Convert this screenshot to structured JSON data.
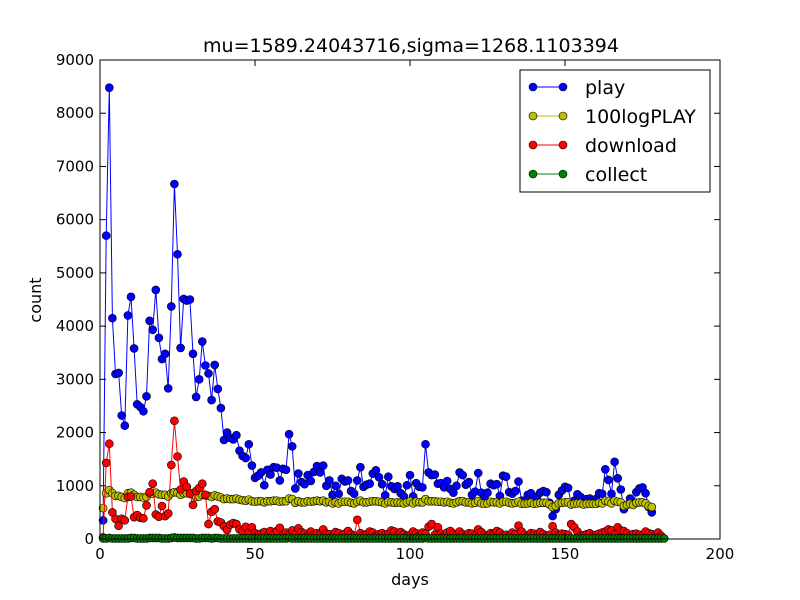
{
  "chart_data": {
    "type": "line",
    "title": "mu=1589.24043716,sigma=1268.1103394",
    "xlabel": "days",
    "ylabel": "count",
    "xlim": [
      0,
      200
    ],
    "ylim": [
      0,
      9000
    ],
    "xticks": [
      "0",
      "50",
      "100",
      "150",
      "200"
    ],
    "yticks": [
      "0",
      "1000",
      "2000",
      "3000",
      "4000",
      "5000",
      "6000",
      "7000",
      "8000",
      "9000"
    ],
    "grid": false,
    "legend_position": "top-right",
    "series": [
      {
        "name": "play",
        "color": "#0000ff",
        "x_start": 1,
        "values": [
          350,
          5700,
          8480,
          4150,
          3100,
          3120,
          2320,
          2130,
          4200,
          4550,
          3580,
          2530,
          2480,
          2400,
          2680,
          4100,
          3930,
          4680,
          3780,
          3380,
          3480,
          2830,
          4370,
          6670,
          5350,
          3590,
          4510,
          4480,
          4500,
          3480,
          2670,
          3000,
          3710,
          3260,
          3110,
          2610,
          3270,
          2820,
          2460,
          1860,
          2000,
          1900,
          1870,
          1950,
          1660,
          1560,
          1520,
          1780,
          1380,
          1150,
          1190,
          1250,
          1010,
          1300,
          1210,
          1350,
          1340,
          1100,
          1320,
          1300,
          1970,
          1740,
          950,
          1230,
          1070,
          1030,
          1200,
          1090,
          1260,
          1370,
          1250,
          1380,
          1000,
          1100,
          830,
          1000,
          850,
          1130,
          1080,
          1100,
          900,
          850,
          1100,
          1350,
          980,
          1020,
          1040,
          1230,
          1290,
          1160,
          1030,
          820,
          1170,
          990,
          940,
          990,
          860,
          800,
          1010,
          1200,
          800,
          1050,
          980,
          970,
          1780,
          1250,
          1200,
          1210,
          1040,
          1050,
          970,
          1090,
          940,
          870,
          1000,
          1250,
          1200,
          1020,
          1070,
          830,
          890,
          1240,
          870,
          780,
          870,
          1040,
          1010,
          1030,
          810,
          1190,
          1170,
          880,
          850,
          900,
          1080,
          720,
          720,
          830,
          860,
          720,
          800,
          870,
          900,
          880,
          680,
          430,
          560,
          830,
          910,
          980,
          960,
          650,
          720,
          840,
          790,
          700,
          750,
          760,
          720,
          750,
          860,
          850,
          1310,
          1110,
          850,
          1450,
          1140,
          930,
          560,
          640,
          760,
          650,
          880,
          950,
          970,
          860,
          600,
          500
        ]
      },
      {
        "name": "100logPLAY",
        "color": "#bfbf00",
        "x_start": 1,
        "values": [
          580,
          860,
          920,
          860,
          810,
          810,
          790,
          770,
          860,
          870,
          830,
          790,
          790,
          780,
          790,
          860,
          850,
          870,
          840,
          830,
          830,
          800,
          860,
          880,
          870,
          830,
          860,
          860,
          860,
          830,
          790,
          800,
          830,
          820,
          810,
          790,
          820,
          800,
          780,
          750,
          760,
          750,
          750,
          760,
          740,
          730,
          720,
          740,
          710,
          700,
          710,
          710,
          690,
          710,
          710,
          720,
          720,
          700,
          710,
          710,
          760,
          750,
          680,
          710,
          690,
          690,
          710,
          700,
          710,
          720,
          710,
          720,
          690,
          700,
          670,
          690,
          670,
          700,
          700,
          700,
          680,
          670,
          700,
          720,
          690,
          690,
          700,
          710,
          710,
          700,
          690,
          670,
          700,
          690,
          680,
          690,
          680,
          670,
          690,
          710,
          670,
          700,
          690,
          690,
          750,
          710,
          710,
          710,
          700,
          700,
          690,
          700,
          680,
          670,
          690,
          710,
          710,
          690,
          690,
          670,
          680,
          710,
          670,
          660,
          670,
          700,
          690,
          690,
          670,
          700,
          700,
          680,
          670,
          680,
          700,
          660,
          660,
          670,
          680,
          660,
          670,
          680,
          680,
          680,
          650,
          600,
          620,
          670,
          680,
          690,
          690,
          650,
          660,
          670,
          670,
          650,
          660,
          660,
          660,
          660,
          680,
          670,
          720,
          700,
          670,
          720,
          700,
          690,
          620,
          640,
          660,
          640,
          680,
          690,
          690,
          670,
          620,
          600
        ]
      },
      {
        "name": "download",
        "color": "#ff0000",
        "x_start": 1,
        "values": [
          30,
          1430,
          1790,
          500,
          380,
          250,
          380,
          350,
          790,
          800,
          410,
          450,
          400,
          390,
          630,
          880,
          1040,
          460,
          420,
          620,
          430,
          480,
          1390,
          2220,
          1550,
          930,
          1080,
          980,
          850,
          640,
          900,
          960,
          1040,
          830,
          280,
          510,
          560,
          330,
          310,
          240,
          170,
          270,
          300,
          280,
          180,
          150,
          230,
          120,
          220,
          110,
          80,
          100,
          130,
          60,
          150,
          90,
          150,
          210,
          70,
          120,
          80,
          160,
          90,
          200,
          130,
          100,
          60,
          140,
          80,
          110,
          90,
          180,
          100,
          90,
          60,
          130,
          110,
          70,
          100,
          150,
          90,
          60,
          360,
          110,
          70,
          90,
          140,
          120,
          60,
          90,
          110,
          80,
          100,
          160,
          140,
          70,
          130,
          90,
          60,
          80,
          140,
          110,
          60,
          120,
          100,
          230,
          280,
          80,
          220,
          100,
          60,
          120,
          150,
          100,
          80,
          140,
          90,
          60,
          110,
          100,
          70,
          180,
          130,
          80,
          60,
          110,
          90,
          150,
          120,
          70,
          80,
          60,
          120,
          90,
          250,
          140,
          80,
          60,
          110,
          100,
          70,
          130,
          90,
          60,
          80,
          240,
          120,
          70,
          100,
          90,
          80,
          280,
          220,
          140,
          60,
          70,
          90,
          110,
          60,
          80,
          100,
          120,
          140,
          180,
          160,
          80,
          220,
          160,
          150,
          110,
          60,
          90,
          100,
          80,
          70,
          140,
          110,
          90,
          70,
          120,
          60
        ]
      },
      {
        "name": "collect",
        "color": "#008000",
        "x_start": 1,
        "values": [
          10,
          10,
          20,
          10,
          10,
          10,
          10,
          10,
          10,
          20,
          20,
          10,
          10,
          10,
          10,
          20,
          20,
          20,
          20,
          10,
          10,
          10,
          20,
          30,
          20,
          20,
          20,
          20,
          20,
          20,
          10,
          10,
          20,
          20,
          20,
          10,
          20,
          20,
          10,
          10,
          10,
          10,
          10,
          10,
          10,
          10,
          10,
          10,
          10,
          10,
          10,
          10,
          10,
          10,
          10,
          10,
          10,
          10,
          10,
          10,
          20,
          10,
          10,
          10,
          10,
          10,
          10,
          10,
          10,
          10,
          10,
          10,
          10,
          10,
          10,
          10,
          10,
          10,
          10,
          10,
          10,
          10,
          10,
          10,
          10,
          10,
          10,
          10,
          10,
          10,
          10,
          10,
          10,
          10,
          10,
          10,
          10,
          10,
          10,
          10,
          10,
          10,
          10,
          10,
          20,
          10,
          10,
          10,
          10,
          10,
          10,
          10,
          10,
          10,
          10,
          10,
          10,
          10,
          10,
          10,
          10,
          10,
          10,
          10,
          10,
          10,
          10,
          10,
          10,
          10,
          10,
          10,
          10,
          10,
          10,
          10,
          10,
          10,
          10,
          10,
          10,
          10,
          10,
          10,
          10,
          10,
          10,
          10,
          10,
          10,
          10,
          10,
          10,
          10,
          10,
          10,
          10,
          10,
          10,
          10,
          10,
          10,
          10,
          10,
          10,
          10,
          10,
          10,
          10,
          10,
          10,
          10,
          10,
          10,
          10,
          10,
          10,
          10,
          10,
          10,
          10,
          10
        ]
      }
    ]
  }
}
